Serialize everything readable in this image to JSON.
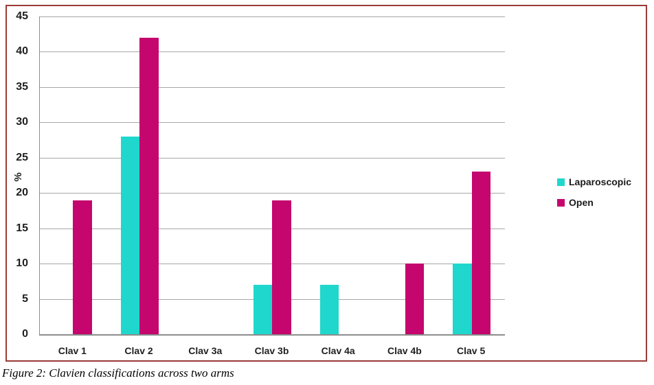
{
  "figure": {
    "caption": "Figure 2: Clavien classifications across two arms"
  },
  "chart_data": {
    "type": "bar",
    "title": "",
    "categories": [
      "Clav 1",
      "Clav 2",
      "Clav 3a",
      "Clav 3b",
      "Clav 4a",
      "Clav 4b",
      "Clav 5"
    ],
    "series": [
      {
        "name": "Laparoscopic",
        "color": "#1fd7cc",
        "values": [
          0,
          28,
          0,
          7,
          7,
          0,
          10
        ]
      },
      {
        "name": "Open",
        "color": "#c4066e",
        "values": [
          19,
          42,
          0,
          19,
          0,
          10,
          23
        ]
      }
    ],
    "xlabel": "",
    "ylabel": "%",
    "ylim": [
      0,
      45
    ],
    "yticks": [
      0,
      5,
      10,
      15,
      20,
      25,
      30,
      35,
      40,
      45
    ],
    "grid": true,
    "legend_position": "right"
  },
  "colors": {
    "frame_border": "#9a3a38",
    "gridline": "#a6a6a6",
    "axis": "#8c8c8c",
    "label_text": "#1f1f1f"
  }
}
